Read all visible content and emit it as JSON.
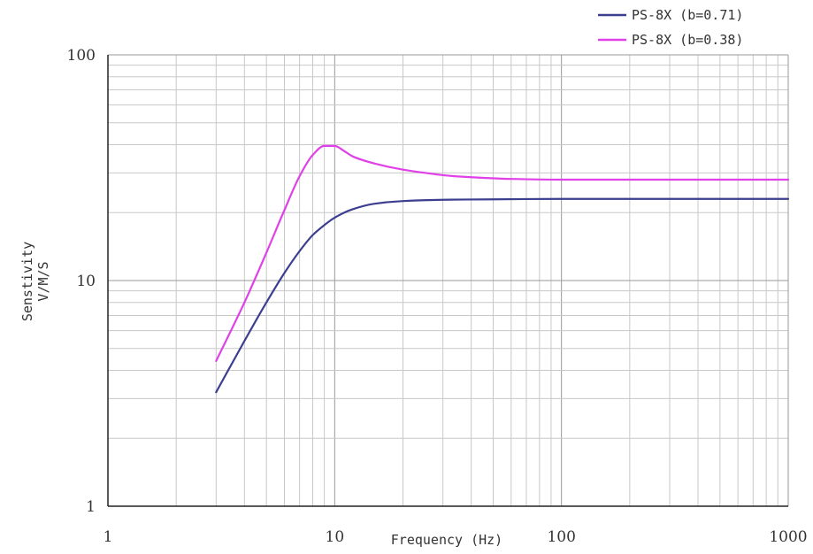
{
  "chart_data": {
    "type": "line",
    "xlabel": "Frequency (Hz)",
    "ylabel_lines": [
      "Senstivity",
      "V/M/S"
    ],
    "x_scale": "log",
    "y_scale": "log",
    "xlim": [
      1,
      1000
    ],
    "ylim": [
      1,
      100
    ],
    "x_ticks": [
      1,
      10,
      100,
      1000
    ],
    "x_tick_labels": [
      "1",
      "10",
      "100",
      "1000"
    ],
    "y_ticks": [
      1,
      10,
      100
    ],
    "y_tick_labels": [
      "1",
      "10",
      "100"
    ],
    "grid": true,
    "legend_position": "top-right",
    "series": [
      {
        "name": "PS-8X (b=0.71)",
        "color": "#3c3f8f",
        "x": [
          3,
          4,
          5,
          6,
          7,
          8,
          9,
          10,
          12,
          15,
          20,
          30,
          50,
          100,
          200,
          500,
          1000
        ],
        "y": [
          3.2,
          5.4,
          8.0,
          10.8,
          13.5,
          15.9,
          17.6,
          19.0,
          20.7,
          21.9,
          22.5,
          22.8,
          22.9,
          23.0,
          23.0,
          23.0,
          23.0
        ]
      },
      {
        "name": "PS-8X (b=0.38)",
        "color": "#e040e8",
        "x": [
          3,
          4,
          5,
          6,
          7,
          8,
          9,
          10,
          11,
          12,
          15,
          20,
          25,
          30,
          40,
          60,
          100,
          200,
          500,
          1000
        ],
        "y": [
          4.4,
          8.0,
          13.3,
          20.5,
          29.0,
          36.0,
          39.5,
          39.5,
          37.5,
          35.5,
          33.0,
          31.0,
          30.0,
          29.3,
          28.7,
          28.2,
          28.0,
          28.0,
          28.0,
          28.0
        ]
      }
    ]
  }
}
